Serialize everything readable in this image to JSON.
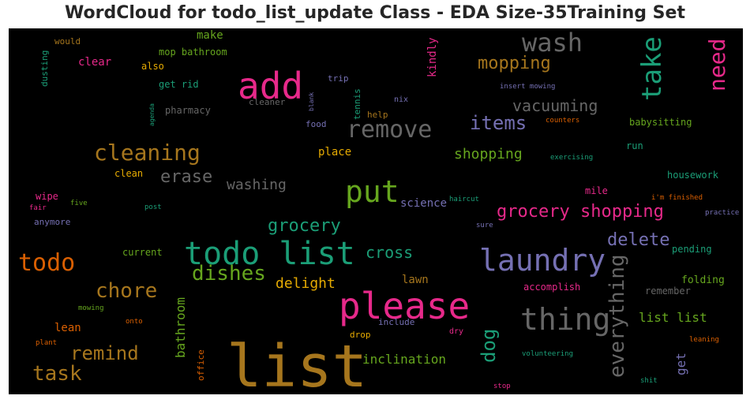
{
  "chart_data": {
    "type": "wordcloud",
    "title": "WordCloud for todo_list_update Class - EDA Size-35Training Set",
    "background": "#000000",
    "palette": [
      "#e7298a",
      "#1b9e77",
      "#d95f02",
      "#7570b3",
      "#66a61e",
      "#e6ab02",
      "#a6761d",
      "#666666"
    ],
    "words": [
      {
        "text": "list",
        "color": "#a6761d",
        "vertical": false
      },
      {
        "text": "todo list",
        "color": "#1b9e77",
        "vertical": false
      },
      {
        "text": "please",
        "color": "#e7298a",
        "vertical": false
      },
      {
        "text": "add",
        "color": "#e7298a",
        "vertical": false
      },
      {
        "text": "laundry",
        "color": "#7570b3",
        "vertical": false
      },
      {
        "text": "put",
        "color": "#66a61e",
        "vertical": false
      },
      {
        "text": "thing",
        "color": "#666666",
        "vertical": false
      },
      {
        "text": "wash",
        "color": "#666666",
        "vertical": false
      },
      {
        "text": "take",
        "color": "#1b9e77",
        "vertical": true
      },
      {
        "text": "todo",
        "color": "#d95f02",
        "vertical": false
      },
      {
        "text": "need",
        "color": "#e7298a",
        "vertical": true
      },
      {
        "text": "remove",
        "color": "#666666",
        "vertical": false
      },
      {
        "text": "cleaning",
        "color": "#a6761d",
        "vertical": false
      },
      {
        "text": "everything",
        "color": "#666666",
        "vertical": true
      },
      {
        "text": "chore",
        "color": "#a6761d",
        "vertical": false
      },
      {
        "text": "dishes",
        "color": "#66a61e",
        "vertical": false
      },
      {
        "text": "grocery shopping",
        "color": "#e7298a",
        "vertical": false
      },
      {
        "text": "mopping",
        "color": "#a6761d",
        "vertical": false
      },
      {
        "text": "task",
        "color": "#a6761d",
        "vertical": false
      },
      {
        "text": "remind",
        "color": "#a6761d",
        "vertical": false
      },
      {
        "text": "items",
        "color": "#7570b3",
        "vertical": false
      },
      {
        "text": "dog",
        "color": "#1b9e77",
        "vertical": true
      },
      {
        "text": "delete",
        "color": "#7570b3",
        "vertical": false
      },
      {
        "text": "grocery",
        "color": "#1b9e77",
        "vertical": false
      },
      {
        "text": "erase",
        "color": "#666666",
        "vertical": false
      },
      {
        "text": "vacuuming",
        "color": "#666666",
        "vertical": false
      },
      {
        "text": "delight",
        "color": "#e6ab02",
        "vertical": false
      },
      {
        "text": "cross",
        "color": "#1b9e77",
        "vertical": false
      },
      {
        "text": "inclination",
        "color": "#66a61e",
        "vertical": false
      },
      {
        "text": "shopping",
        "color": "#66a61e",
        "vertical": false
      },
      {
        "text": "washing",
        "color": "#666666",
        "vertical": false
      },
      {
        "text": "bathroom",
        "color": "#66a61e",
        "vertical": true
      },
      {
        "text": "get",
        "color": "#7570b3",
        "vertical": true
      },
      {
        "text": "list list",
        "color": "#66a61e",
        "vertical": false
      },
      {
        "text": "kindly",
        "color": "#e7298a",
        "vertical": true
      },
      {
        "text": "place",
        "color": "#e6ab02",
        "vertical": false
      },
      {
        "text": "lawn",
        "color": "#a6761d",
        "vertical": false
      },
      {
        "text": "science",
        "color": "#7570b3",
        "vertical": false
      },
      {
        "text": "clear",
        "color": "#e7298a",
        "vertical": false
      },
      {
        "text": "make",
        "color": "#66a61e",
        "vertical": false
      },
      {
        "text": "mop bathroom",
        "color": "#66a61e",
        "vertical": false
      },
      {
        "text": "babysitting",
        "color": "#66a61e",
        "vertical": false
      },
      {
        "text": "housework",
        "color": "#1b9e77",
        "vertical": false
      },
      {
        "text": "lean",
        "color": "#d95f02",
        "vertical": false
      },
      {
        "text": "folding",
        "color": "#66a61e",
        "vertical": false
      },
      {
        "text": "remember",
        "color": "#666666",
        "vertical": false
      },
      {
        "text": "pending",
        "color": "#1b9e77",
        "vertical": false
      },
      {
        "text": "accomplish",
        "color": "#e7298a",
        "vertical": false
      },
      {
        "text": "current",
        "color": "#66a61e",
        "vertical": false
      },
      {
        "text": "mile",
        "color": "#e7298a",
        "vertical": false
      },
      {
        "text": "run",
        "color": "#1b9e77",
        "vertical": false
      },
      {
        "text": "get rid",
        "color": "#1b9e77",
        "vertical": false
      },
      {
        "text": "pharmacy",
        "color": "#666666",
        "vertical": false
      },
      {
        "text": "would",
        "color": "#a6761d",
        "vertical": false
      },
      {
        "text": "also",
        "color": "#e6ab02",
        "vertical": false
      },
      {
        "text": "wipe",
        "color": "#e7298a",
        "vertical": false
      },
      {
        "text": "clean",
        "color": "#e6ab02",
        "vertical": false
      },
      {
        "text": "anymore",
        "color": "#7570b3",
        "vertical": false
      },
      {
        "text": "food",
        "color": "#7570b3",
        "vertical": false
      },
      {
        "text": "help",
        "color": "#a6761d",
        "vertical": false
      },
      {
        "text": "trip",
        "color": "#7570b3",
        "vertical": false
      },
      {
        "text": "cleaner",
        "color": "#666666",
        "vertical": false
      },
      {
        "text": "drop",
        "color": "#e6ab02",
        "vertical": false
      },
      {
        "text": "include",
        "color": "#7570b3",
        "vertical": false
      },
      {
        "text": "dusting",
        "color": "#1b9e77",
        "vertical": true
      },
      {
        "text": "tennis",
        "color": "#1b9e77",
        "vertical": true
      },
      {
        "text": "office",
        "color": "#d95f02",
        "vertical": true
      },
      {
        "text": "nix",
        "color": "#7570b3",
        "vertical": false
      },
      {
        "text": "insert mowing",
        "color": "#7570b3",
        "vertical": false
      },
      {
        "text": "counters",
        "color": "#d95f02",
        "vertical": false
      },
      {
        "text": "exercising",
        "color": "#1b9e77",
        "vertical": false
      },
      {
        "text": "i'm finished",
        "color": "#d95f02",
        "vertical": false
      },
      {
        "text": "practice",
        "color": "#7570b3",
        "vertical": false
      },
      {
        "text": "haircut",
        "color": "#1b9e77",
        "vertical": false
      },
      {
        "text": "sure",
        "color": "#7570b3",
        "vertical": false
      },
      {
        "text": "five",
        "color": "#66a61e",
        "vertical": false
      },
      {
        "text": "fair",
        "color": "#e7298a",
        "vertical": false
      },
      {
        "text": "post",
        "color": "#1b9e77",
        "vertical": false
      },
      {
        "text": "agenda",
        "color": "#1b9e77",
        "vertical": true
      },
      {
        "text": "blank",
        "color": "#7570b3",
        "vertical": true
      },
      {
        "text": "mowing",
        "color": "#66a61e",
        "vertical": false
      },
      {
        "text": "onto",
        "color": "#d95f02",
        "vertical": false
      },
      {
        "text": "plant",
        "color": "#d95f02",
        "vertical": false
      },
      {
        "text": "dry",
        "color": "#e7298a",
        "vertical": false
      },
      {
        "text": "volunteering",
        "color": "#1b9e77",
        "vertical": false
      },
      {
        "text": "leaning",
        "color": "#d95f02",
        "vertical": false
      },
      {
        "text": "shit",
        "color": "#1b9e77",
        "vertical": false
      },
      {
        "text": "stop",
        "color": "#e7298a",
        "vertical": false
      }
    ]
  }
}
